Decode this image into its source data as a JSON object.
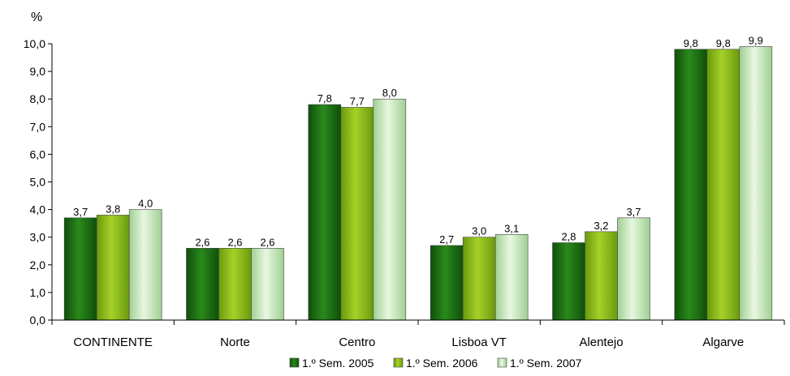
{
  "chart_data": {
    "type": "bar",
    "ylabel": "%",
    "ylim": [
      0,
      10
    ],
    "ytick_step": 1,
    "ytick_labels": [
      "0,0",
      "1,0",
      "2,0",
      "3,0",
      "4,0",
      "5,0",
      "6,0",
      "7,0",
      "8,0",
      "9,0",
      "10,0"
    ],
    "categories": [
      "CONTINENTE",
      "Norte",
      "Centro",
      "Lisboa VT",
      "Alentejo",
      "Algarve"
    ],
    "series": [
      {
        "name": "1.º Sem. 2005",
        "color": "#1a6e12",
        "values": [
          3.7,
          2.6,
          7.8,
          2.7,
          2.8,
          9.8
        ],
        "labels": [
          "3,7",
          "2,6",
          "7,8",
          "2,7",
          "2,8",
          "9,8"
        ]
      },
      {
        "name": "1.º Sem. 2006",
        "color": "#8cbc1c",
        "values": [
          3.8,
          2.6,
          7.7,
          3.0,
          3.2,
          9.8
        ],
        "labels": [
          "3,8",
          "2,6",
          "7,7",
          "3,0",
          "3,2",
          "9,8"
        ]
      },
      {
        "name": "1.º Sem. 2007",
        "color": "#c7e6b6",
        "values": [
          4.0,
          2.6,
          8.0,
          3.1,
          3.7,
          9.9
        ],
        "labels": [
          "4,0",
          "2,6",
          "8,0",
          "3,1",
          "3,7",
          "9,9"
        ]
      }
    ],
    "legend_position": "bottom-center",
    "grid": false
  }
}
